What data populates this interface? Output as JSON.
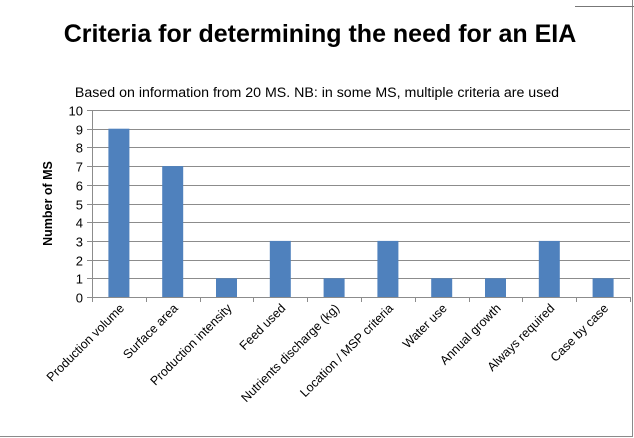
{
  "chart_data": {
    "type": "bar",
    "title": "Criteria for determining the need for an EIA",
    "subtitle": "Based on information from 20 MS. NB: in some MS, multiple criteria are used",
    "ylabel": "Number of MS",
    "xlabel": "",
    "ylim": [
      0,
      10
    ],
    "yticks": [
      "0",
      "1",
      "2",
      "3",
      "4",
      "5",
      "6",
      "7",
      "8",
      "9",
      "10"
    ],
    "grid": true,
    "legend": "none",
    "categories": [
      "Production volume",
      "Surface area",
      "Production intensity",
      "Feed used",
      "Nutrients discharge (kg)",
      "Location / MSP criteria",
      "Water use",
      "Annual growth",
      "Always required",
      "Case by case"
    ],
    "values": [
      9,
      7,
      1,
      3,
      1,
      3,
      1,
      1,
      3,
      1
    ],
    "colors": {
      "bar": "#4f81bd",
      "grid": "#8c8c8c",
      "axis": "#8c8c8c"
    }
  }
}
